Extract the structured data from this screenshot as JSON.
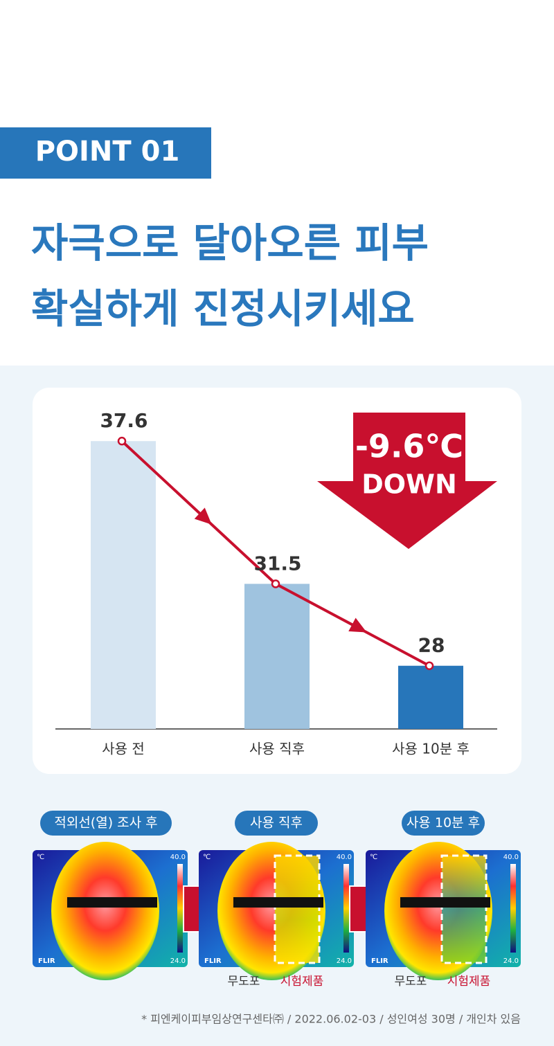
{
  "header": {
    "badge": "POINT 01",
    "title_lines": [
      "자극으로 달아오른 피부",
      "확실하게 진정시키세요"
    ]
  },
  "chart_data": {
    "type": "bar",
    "categories": [
      "사용 전",
      "사용 직후",
      "사용 10분 후"
    ],
    "values": [
      37.6,
      31.5,
      28
    ],
    "colors": [
      "#d6e5f2",
      "#9fc3df",
      "#2776ba"
    ],
    "line_color": "#c8102e",
    "ylim": [
      25.3,
      38.7
    ],
    "annotation": {
      "text": "-9.6℃",
      "subtext": "DOWN"
    }
  },
  "thermal": {
    "panels": [
      {
        "label": "적외선(열) 조사 후",
        "unit": "℃",
        "max": "40.0",
        "min": "24.0",
        "brand": "FLIR"
      },
      {
        "label": "사용 직후",
        "unit": "℃",
        "max": "40.0",
        "min": "24.0",
        "brand": "FLIR",
        "left_label": "무도포",
        "right_label": "시험제품"
      },
      {
        "label": "사용 10분 후",
        "unit": "℃",
        "max": "40.0",
        "min": "24.0",
        "brand": "FLIR",
        "left_label": "무도포",
        "right_label": "시험제품"
      }
    ]
  },
  "footnote": "* 피엔케이피부임상연구센타㈜ / 2022.06.02-03 / 성인여성 30명 / 개인차 있음"
}
